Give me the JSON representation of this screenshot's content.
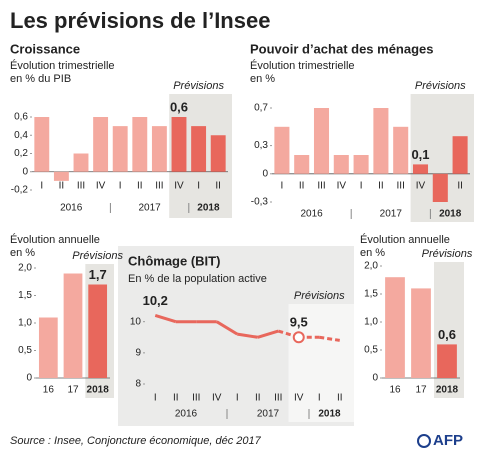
{
  "title": "Les prévisions de l’Insee",
  "source": "Source : Insee, Conjoncture économique, déc 2017",
  "logo": "AFP",
  "chart_data": [
    {
      "type": "bar",
      "title": "Croissance",
      "subtitle": [
        "Évolution trimestrielle",
        "en % du PIB"
      ],
      "forecast_label": "Prévisions",
      "categories": [
        "I",
        "II",
        "III",
        "IV",
        "I",
        "II",
        "III",
        "IV",
        "I",
        "II"
      ],
      "group_labels": [
        "2016",
        "2017",
        "2018"
      ],
      "group_sizes": [
        4,
        4,
        2
      ],
      "values": [
        0.6,
        -0.1,
        0.2,
        0.6,
        0.5,
        0.6,
        0.5,
        0.6,
        0.5,
        0.4
      ],
      "value_labels": [
        null,
        null,
        null,
        null,
        null,
        null,
        null,
        "0,6",
        null,
        null
      ],
      "forecast_from": 7,
      "color": "#f4a99f",
      "forecast_color": "#e8675c",
      "ylim": [
        -0.2,
        0.6
      ],
      "yticks": [
        {
          "value": 0.6,
          "label": "0,6"
        },
        {
          "value": 0.4,
          "label": "0,4"
        },
        {
          "value": 0.2,
          "label": "0,2"
        },
        0,
        {
          "value": -0.2,
          "label": "-0,2"
        }
      ]
    },
    {
      "type": "bar",
      "title": "Pouvoir d’achat des ménages",
      "subtitle": [
        "Évolution trimestrielle",
        "en %"
      ],
      "forecast_label": "Prévisions",
      "categories": [
        "I",
        "II",
        "III",
        "IV",
        "I",
        "II",
        "III",
        "IV",
        "I",
        "II"
      ],
      "group_labels": [
        "2016",
        "2017",
        "2018"
      ],
      "group_sizes": [
        4,
        4,
        2
      ],
      "values": [
        0.5,
        0.2,
        0.7,
        0.2,
        0.2,
        0.7,
        0.5,
        0.1,
        -0.3,
        0.4
      ],
      "value_labels": [
        null,
        null,
        null,
        null,
        null,
        null,
        null,
        "0,1",
        null,
        null
      ],
      "forecast_from": 7,
      "color": "#f4a99f",
      "forecast_color": "#e8675c",
      "ylim": [
        -0.3,
        0.7
      ],
      "yticks": [
        {
          "value": 0.7,
          "label": "0,7"
        },
        {
          "value": 0.3,
          "label": "0,3"
        },
        0,
        {
          "value": -0.3,
          "label": "-0,3"
        }
      ]
    },
    {
      "type": "bar",
      "subtitle": [
        "Évolution annuelle",
        "en %"
      ],
      "forecast_label": "Prévisions",
      "categories": [
        "16",
        "17",
        "2018"
      ],
      "values": [
        1.1,
        1.9,
        1.7
      ],
      "value_labels": [
        null,
        null,
        "1,7"
      ],
      "forecast_from": 2,
      "color": "#f4a99f",
      "forecast_color": "#e8675c",
      "ylim": [
        0,
        2
      ],
      "yticks": [
        0,
        {
          "value": 0.5,
          "label": "0,5"
        },
        {
          "value": 1,
          "label": "1,0"
        },
        {
          "value": 1.5,
          "label": "1,5"
        },
        {
          "value": 2,
          "label": "2,0"
        }
      ]
    },
    {
      "type": "line",
      "title": "Chômage (BIT)",
      "subtitle": [
        "En % de la population active"
      ],
      "forecast_label": "Prévisions",
      "categories": [
        "I",
        "II",
        "III",
        "IV",
        "I",
        "II",
        "III",
        "IV",
        "I",
        "II"
      ],
      "group_labels": [
        "2016",
        "2017",
        "2018"
      ],
      "group_sizes": [
        4,
        4,
        2
      ],
      "values": [
        10.2,
        10.0,
        10.0,
        10.0,
        9.6,
        9.5,
        9.7,
        9.5,
        9.5,
        9.4
      ],
      "value_labels": [
        "10,2",
        null,
        null,
        null,
        null,
        null,
        null,
        "9,5",
        null,
        null
      ],
      "forecast_from": 7,
      "color": "#e8675c",
      "ylim": [
        8,
        10.6
      ],
      "yticks": [
        8,
        9,
        10
      ]
    },
    {
      "type": "bar",
      "subtitle": [
        "Évolution annuelle",
        "en %"
      ],
      "forecast_label": "Prévisions",
      "categories": [
        "16",
        "17",
        "2018"
      ],
      "values": [
        1.8,
        1.6,
        0.6
      ],
      "value_labels": [
        null,
        null,
        "0,6"
      ],
      "forecast_from": 2,
      "color": "#f4a99f",
      "forecast_color": "#e8675c",
      "ylim": [
        0,
        2
      ],
      "yticks": [
        0,
        {
          "value": 0.5,
          "label": "0,5"
        },
        {
          "value": 1,
          "label": "1,0"
        },
        {
          "value": 1.5,
          "label": "1,5"
        },
        {
          "value": 2,
          "label": "2,0"
        }
      ]
    }
  ]
}
